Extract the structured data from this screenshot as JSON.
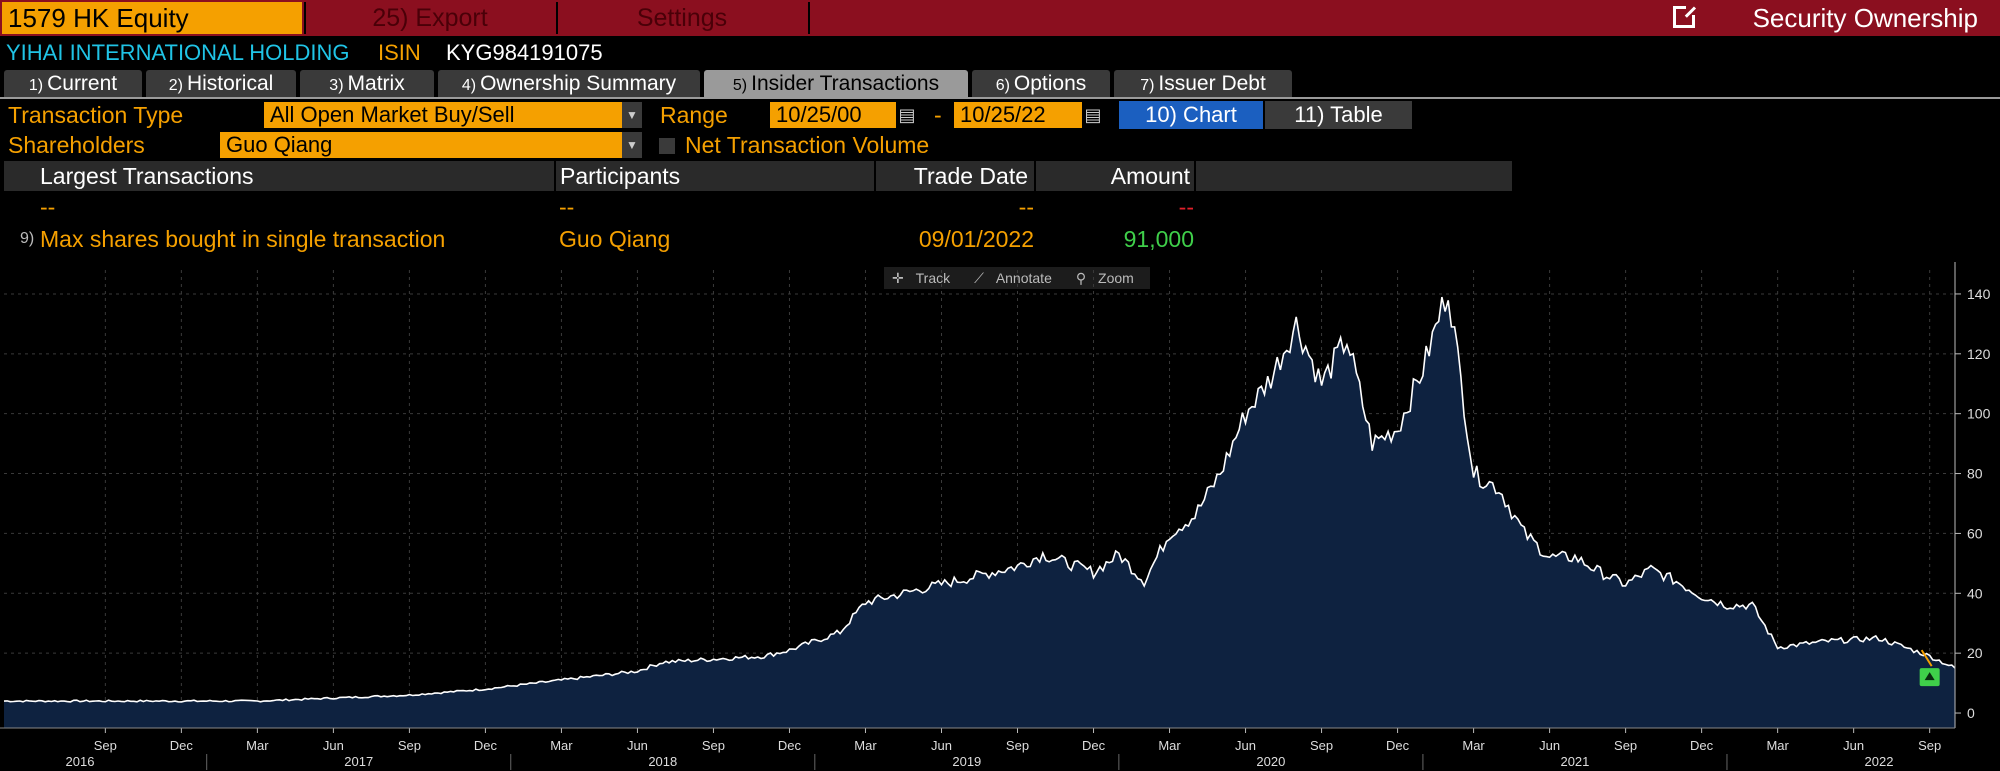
{
  "header": {
    "ticker": "1579 HK Equity",
    "export_label": "25) Export",
    "settings_label": "Settings",
    "title": "Security Ownership"
  },
  "security": {
    "name": "YIHAI INTERNATIONAL HOLDING",
    "isin_label": "ISIN",
    "isin": "KYG984191075"
  },
  "tabs": [
    {
      "num": "1)",
      "label": "Current"
    },
    {
      "num": "2)",
      "label": "Historical"
    },
    {
      "num": "3)",
      "label": "Matrix"
    },
    {
      "num": "4)",
      "label": "Ownership Summary"
    },
    {
      "num": "5)",
      "label": "Insider Transactions"
    },
    {
      "num": "6)",
      "label": "Options"
    },
    {
      "num": "7)",
      "label": "Issuer Debt"
    }
  ],
  "filters": {
    "transaction_type_label": "Transaction Type",
    "transaction_type_value": "All Open Market Buy/Sell",
    "range_label": "Range",
    "range_start": "10/25/00",
    "range_sep": "-",
    "range_end": "10/25/22",
    "chart_button": "10) Chart",
    "table_button": "11) Table",
    "shareholders_label": "Shareholders",
    "shareholders_value": "Guo Qiang",
    "net_volume_label": "Net Transaction Volume"
  },
  "table": {
    "headers": [
      "Largest Transactions",
      "Participants",
      "Trade Date",
      "Amount"
    ],
    "rows": [
      {
        "num": "",
        "desc": "--",
        "participant": "--",
        "date": "--",
        "amount": "--"
      },
      {
        "num": "9)",
        "desc": "Max shares bought in single transaction",
        "participant": "Guo Qiang",
        "date": "09/01/2022",
        "amount": "91,000"
      }
    ]
  },
  "chart_toolbar": {
    "track": "Track",
    "annotate": "Annotate",
    "zoom": "Zoom"
  },
  "colors": {
    "accent": "#f5a000",
    "header_red": "#8b0f1f",
    "cyan": "#20c4e6",
    "area_fill": "#0e2240",
    "buy_marker": "#3fcf4a",
    "amount_green": "#3fcf4a",
    "amount_red": "#e0202a"
  },
  "chart_data": {
    "type": "area",
    "title": "",
    "ylabel": "",
    "xlabel": "",
    "ylim": [
      -5,
      148
    ],
    "yticks": [
      0,
      20,
      40,
      60,
      80,
      100,
      120,
      140
    ],
    "grid": true,
    "x_start": "2016-05",
    "x_end": "2022-10",
    "xticks": [
      {
        "date": "2016-09",
        "label": "Sep"
      },
      {
        "date": "2016-12",
        "label": "Dec"
      },
      {
        "date": "2017-03",
        "label": "Mar"
      },
      {
        "date": "2017-06",
        "label": "Jun"
      },
      {
        "date": "2017-09",
        "label": "Sep"
      },
      {
        "date": "2017-12",
        "label": "Dec"
      },
      {
        "date": "2018-03",
        "label": "Mar"
      },
      {
        "date": "2018-06",
        "label": "Jun"
      },
      {
        "date": "2018-09",
        "label": "Sep"
      },
      {
        "date": "2018-12",
        "label": "Dec"
      },
      {
        "date": "2019-03",
        "label": "Mar"
      },
      {
        "date": "2019-06",
        "label": "Jun"
      },
      {
        "date": "2019-09",
        "label": "Sep"
      },
      {
        "date": "2019-12",
        "label": "Dec"
      },
      {
        "date": "2020-03",
        "label": "Mar"
      },
      {
        "date": "2020-06",
        "label": "Jun"
      },
      {
        "date": "2020-09",
        "label": "Sep"
      },
      {
        "date": "2020-12",
        "label": "Dec"
      },
      {
        "date": "2021-03",
        "label": "Mar"
      },
      {
        "date": "2021-06",
        "label": "Jun"
      },
      {
        "date": "2021-09",
        "label": "Sep"
      },
      {
        "date": "2021-12",
        "label": "Dec"
      },
      {
        "date": "2022-03",
        "label": "Mar"
      },
      {
        "date": "2022-06",
        "label": "Jun"
      },
      {
        "date": "2022-09",
        "label": "Sep"
      }
    ],
    "years": [
      {
        "date": "2016-08",
        "label": "2016"
      },
      {
        "date": "2017-07",
        "label": "2017"
      },
      {
        "date": "2018-07",
        "label": "2018"
      },
      {
        "date": "2019-07",
        "label": "2019"
      },
      {
        "date": "2020-07",
        "label": "2020"
      },
      {
        "date": "2021-07",
        "label": "2021"
      },
      {
        "date": "2022-07",
        "label": "2022"
      }
    ],
    "series": [
      {
        "points": [
          [
            "2016-05",
            4
          ],
          [
            "2016-09",
            4
          ],
          [
            "2016-12",
            4
          ],
          [
            "2017-03",
            4
          ],
          [
            "2017-06",
            5
          ],
          [
            "2017-09",
            6
          ],
          [
            "2017-12",
            8
          ],
          [
            "2018-02",
            10
          ],
          [
            "2018-04",
            12
          ],
          [
            "2018-06",
            14
          ],
          [
            "2018-07",
            17
          ],
          [
            "2018-09",
            18
          ],
          [
            "2018-11",
            19
          ],
          [
            "2018-12",
            21
          ],
          [
            "2019-02",
            27
          ],
          [
            "2019-03",
            37
          ],
          [
            "2019-05",
            41
          ],
          [
            "2019-07",
            45
          ],
          [
            "2019-09",
            49
          ],
          [
            "2019-10",
            53
          ],
          [
            "2019-12",
            47
          ],
          [
            "2020-01",
            53
          ],
          [
            "2020-02",
            44
          ],
          [
            "2020-03",
            60
          ],
          [
            "2020-04",
            66
          ],
          [
            "2020-05",
            80
          ],
          [
            "2020-06",
            100
          ],
          [
            "2020-07",
            112
          ],
          [
            "2020-08",
            130
          ],
          [
            "2020-09",
            110
          ],
          [
            "2020-10",
            125
          ],
          [
            "2020-11",
            90
          ],
          [
            "2020-12",
            95
          ],
          [
            "2021-01",
            115
          ],
          [
            "2021-02",
            142
          ],
          [
            "2021-03",
            80
          ],
          [
            "2021-04",
            75
          ],
          [
            "2021-05",
            60
          ],
          [
            "2021-06",
            52
          ],
          [
            "2021-07",
            52
          ],
          [
            "2021-08",
            47
          ],
          [
            "2021-09",
            43
          ],
          [
            "2021-10",
            48
          ],
          [
            "2021-11",
            44
          ],
          [
            "2021-12",
            39
          ],
          [
            "2022-01",
            36
          ],
          [
            "2022-02",
            36
          ],
          [
            "2022-03",
            22
          ],
          [
            "2022-05",
            24
          ],
          [
            "2022-07",
            25
          ],
          [
            "2022-08",
            22
          ],
          [
            "2022-09",
            19
          ],
          [
            "2022-10",
            15
          ]
        ]
      }
    ],
    "annotations": [
      {
        "type": "insider-buy",
        "date": "2022-09-01",
        "amount": "91,000"
      }
    ]
  }
}
